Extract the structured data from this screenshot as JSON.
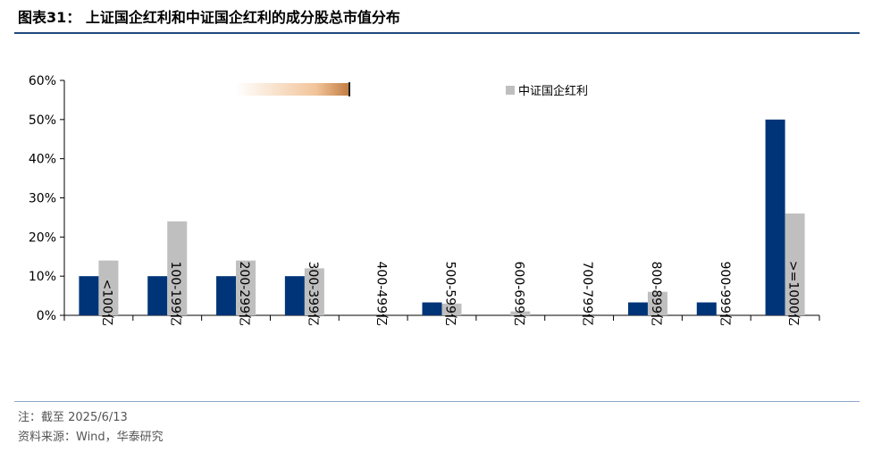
{
  "title": "图表31： 上证国企红利和中证国企红利的成分股总市值分布",
  "legend": {
    "visible_label": "中证国企红利"
  },
  "footnote": "注：截至 2025/6/13",
  "source": "资料来源：Wind，华泰研究",
  "colors": {
    "series_a": "#003478",
    "series_b": "#bfbfbf",
    "title_rule": "#1f497d"
  },
  "chart_data": {
    "type": "bar",
    "categories": [
      "<100亿",
      "100-199亿",
      "200-299亿",
      "300-399亿",
      "400-499亿",
      "500-599亿",
      "600-699亿",
      "700-799亿",
      "800-899亿",
      "900-999亿",
      ">=1000亿"
    ],
    "series": [
      {
        "values": [
          10,
          10,
          10,
          10,
          0,
          3.3,
          0,
          0,
          3.3,
          3.3,
          50
        ]
      },
      {
        "name": "中证国企红利",
        "values": [
          14,
          24,
          14,
          12,
          0,
          3,
          1,
          0,
          6,
          0,
          26
        ]
      }
    ],
    "yticks": [
      "0%",
      "10%",
      "20%",
      "30%",
      "40%",
      "50%",
      "60%"
    ],
    "ylim": [
      0,
      60
    ],
    "legend_position": "top",
    "grid": false
  }
}
